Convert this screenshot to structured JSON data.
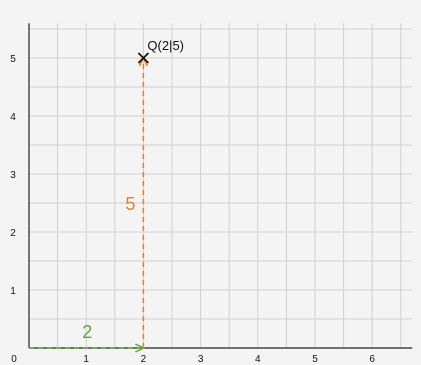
{
  "plot": {
    "x_ticks": [
      "0",
      "1",
      "2",
      "3",
      "4",
      "5",
      "6"
    ],
    "y_ticks": [
      "1",
      "2",
      "3",
      "4",
      "5"
    ],
    "x_range": [
      0,
      6.7
    ],
    "y_range": [
      0,
      5.6
    ],
    "grid_step": 0.5
  },
  "point": {
    "name": "Q",
    "label": "Q(2|5)",
    "x": 2,
    "y": 5,
    "marker": "x-mark-icon",
    "color": "#111111"
  },
  "horizontal_measure": {
    "label": "2",
    "from": 0,
    "to": 2,
    "color": "#5aa832"
  },
  "vertical_measure": {
    "label": "5",
    "from": 0,
    "to": 5,
    "color": "#f07b22"
  }
}
